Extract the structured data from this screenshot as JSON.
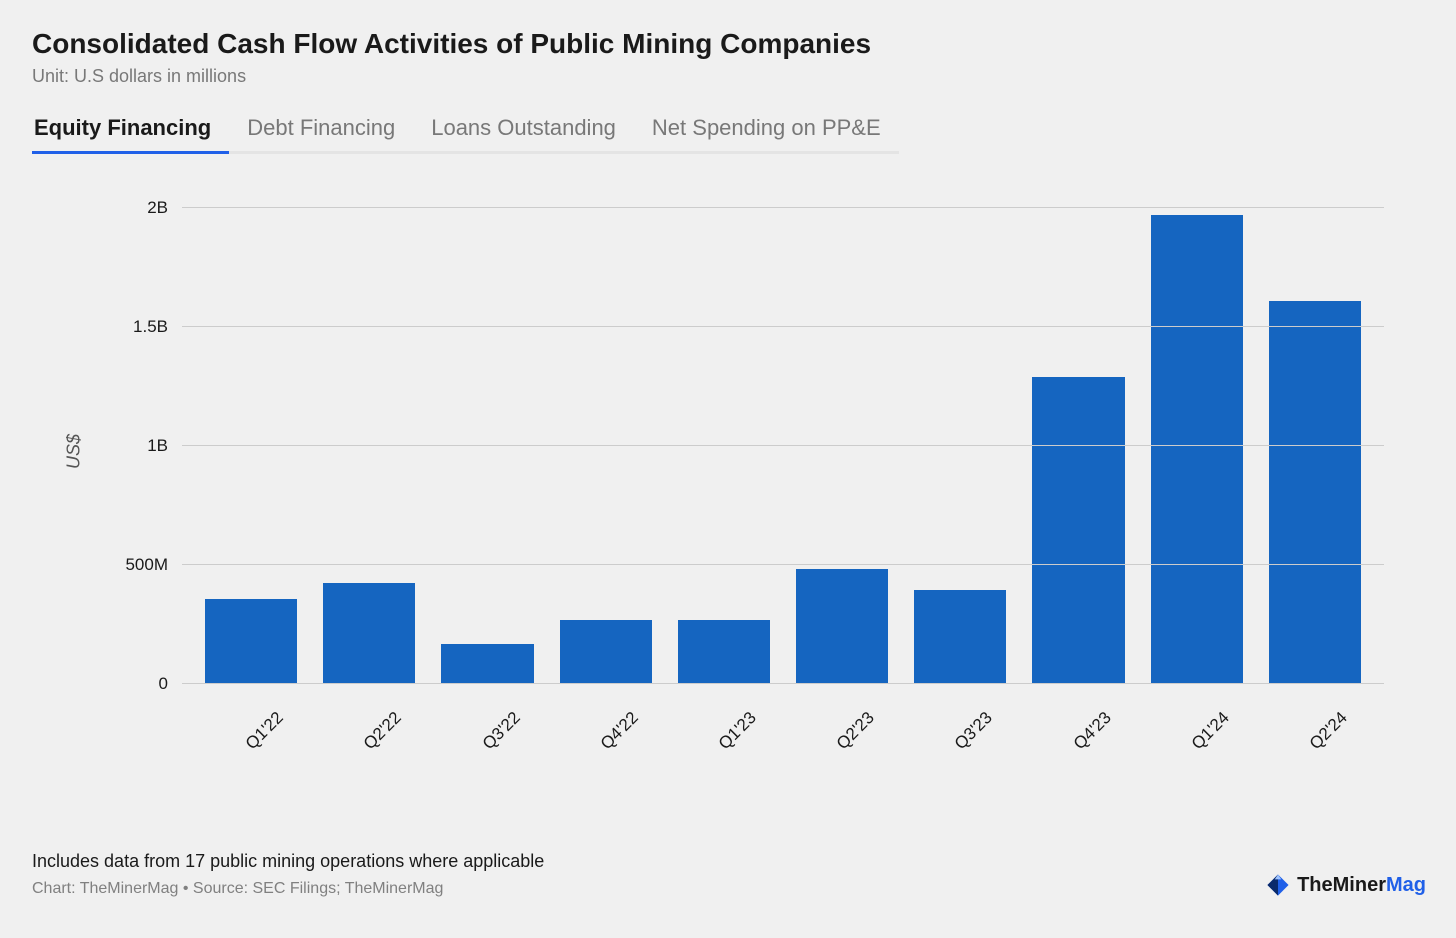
{
  "title": "Consolidated Cash Flow Activities of Public Mining Companies",
  "subtitle": "Unit: U.S dollars in millions",
  "tabs": [
    {
      "label": "Equity Financing",
      "active": true
    },
    {
      "label": "Debt Financing",
      "active": false
    },
    {
      "label": "Loans Outstanding",
      "active": false
    },
    {
      "label": "Net Spending on PP&E",
      "active": false
    }
  ],
  "chart": {
    "type": "bar",
    "ylabel": "US$",
    "ymax": 2100,
    "yticks": [
      {
        "value": 0,
        "label": "0"
      },
      {
        "value": 500,
        "label": "500M"
      },
      {
        "value": 1000,
        "label": "1B"
      },
      {
        "value": 1500,
        "label": "1.5B"
      },
      {
        "value": 2000,
        "label": "2B"
      }
    ],
    "categories": [
      "Q1'22",
      "Q2'22",
      "Q3'22",
      "Q4'22",
      "Q1'23",
      "Q2'23",
      "Q3'23",
      "Q4'23",
      "Q1'24",
      "Q2'24"
    ],
    "values": [
      355,
      425,
      170,
      270,
      270,
      485,
      395,
      1290,
      1970,
      1610
    ],
    "bar_color": "#1565c0",
    "grid_color": "#cccccc",
    "axis_color": "#1a1a1a",
    "background_color": "#f0f0f0",
    "label_fontsize": 17,
    "ylabel_fontsize": 18
  },
  "footer": {
    "note": "Includes data from 17 public mining operations where applicable",
    "credit": "Chart: TheMinerMag • Source: SEC Filings; TheMinerMag"
  },
  "logo": {
    "text_dark": "TheMiner",
    "text_blue": "Mag"
  }
}
